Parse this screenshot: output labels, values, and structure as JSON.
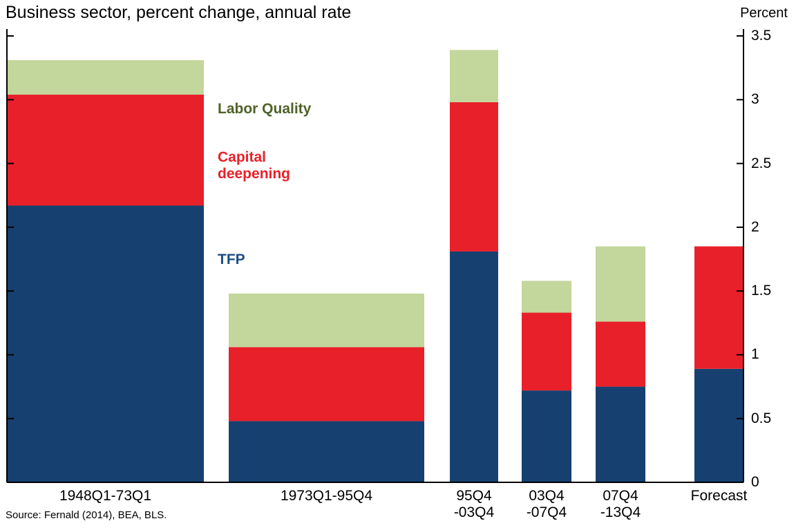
{
  "chart_data": {
    "type": "bar",
    "stacked": true,
    "subtitle": "Business sector, percent change, annual rate",
    "y_axis_label": "Percent",
    "source": "Source: Fernald (2014), BEA, BLS.",
    "categories": [
      "1948Q1-73Q1",
      "1973Q1-95Q4",
      "95Q4\n-03Q4",
      "03Q4\n-07Q4",
      "07Q4\n-13Q4",
      "Forecast"
    ],
    "series": [
      {
        "name": "TFP",
        "color": "#16406f",
        "values": [
          2.17,
          0.48,
          1.81,
          0.72,
          0.75,
          0.89
        ]
      },
      {
        "name": "Capital deepening",
        "color": "#e8202a",
        "values": [
          0.87,
          0.58,
          1.17,
          0.61,
          0.51,
          0.96
        ]
      },
      {
        "name": "Labor Quality",
        "color": "#c3d69b",
        "values": [
          0.27,
          0.42,
          0.41,
          0.25,
          0.59,
          null
        ]
      }
    ],
    "ylim": [
      0,
      3.5
    ],
    "yticks": [
      0,
      0.5,
      1,
      1.5,
      2,
      2.5,
      3,
      3.5
    ],
    "grid": false
  }
}
